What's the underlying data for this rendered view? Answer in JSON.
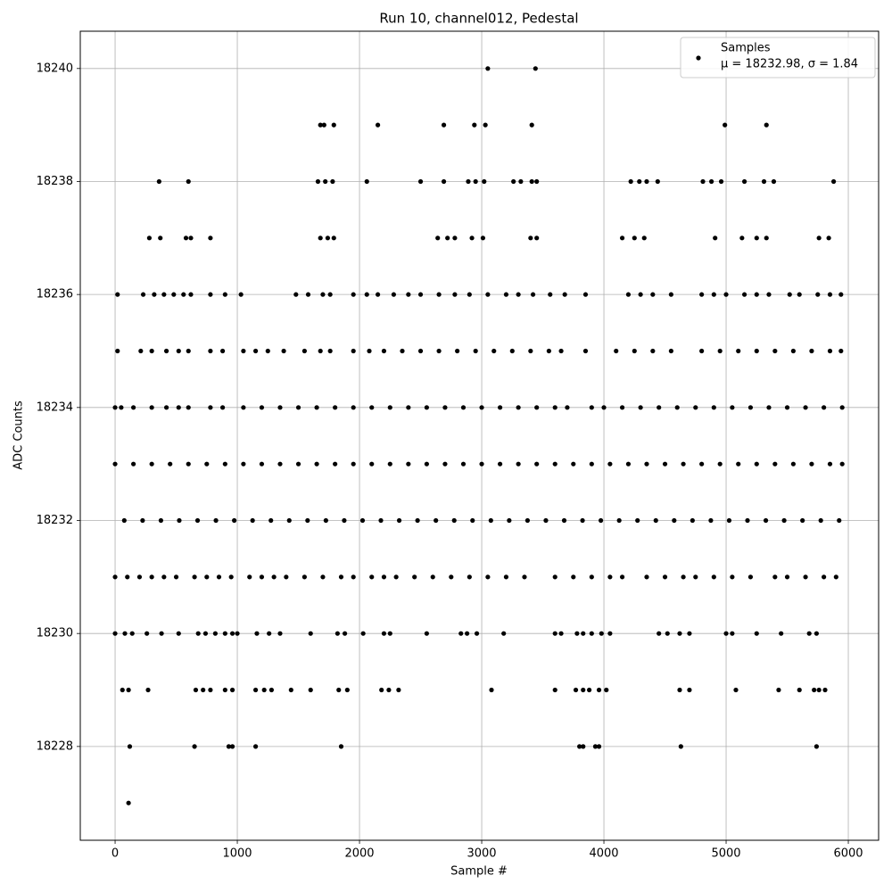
{
  "chart_data": {
    "type": "scatter",
    "title": "Run 10, channel012, Pedestal",
    "x_label": "Sample #",
    "y_label": "ADC Counts",
    "grid": true,
    "legend_position": "upper right",
    "series": [
      {
        "name": "Samples",
        "color": "#000000",
        "x": [
          3050,
          3440,
          1680,
          1710,
          1790,
          2150,
          2690,
          2940,
          3030,
          3410,
          4990,
          5330,
          360,
          600,
          1660,
          1720,
          1780,
          2060,
          2500,
          2690,
          2890,
          2950,
          3020,
          3260,
          3320,
          3410,
          3450,
          4220,
          4290,
          4350,
          4440,
          4810,
          4880,
          4960,
          5150,
          5310,
          5390,
          5880,
          280,
          370,
          580,
          620,
          780,
          1680,
          1740,
          1790,
          2640,
          2720,
          2780,
          2920,
          3010,
          3400,
          3450,
          4150,
          4250,
          4330,
          4910,
          5130,
          5250,
          5330,
          5760,
          5840,
          20,
          230,
          320,
          400,
          480,
          560,
          620,
          780,
          900,
          1030,
          1480,
          1580,
          1700,
          1760,
          1950,
          2060,
          2150,
          2280,
          2400,
          2500,
          2650,
          2780,
          2900,
          3050,
          3200,
          3300,
          3420,
          3560,
          3680,
          3850,
          4200,
          4300,
          4400,
          4550,
          4800,
          4900,
          5000,
          5150,
          5250,
          5350,
          5520,
          5600,
          5750,
          5850,
          5940,
          20,
          210,
          300,
          420,
          520,
          600,
          780,
          880,
          1050,
          1150,
          1250,
          1380,
          1550,
          1680,
          1760,
          1950,
          2080,
          2200,
          2350,
          2500,
          2650,
          2800,
          2950,
          3100,
          3250,
          3400,
          3550,
          3650,
          3850,
          4100,
          4250,
          4400,
          4550,
          4800,
          4950,
          5100,
          5250,
          5400,
          5550,
          5700,
          5850,
          5940,
          0,
          50,
          150,
          300,
          420,
          520,
          600,
          780,
          880,
          1050,
          1200,
          1350,
          1500,
          1650,
          1800,
          1950,
          2100,
          2250,
          2400,
          2550,
          2700,
          2850,
          3000,
          3150,
          3300,
          3450,
          3600,
          3700,
          3900,
          4000,
          4150,
          4300,
          4450,
          4600,
          4750,
          4900,
          5050,
          5200,
          5350,
          5500,
          5650,
          5800,
          5950,
          0,
          150,
          300,
          450,
          600,
          750,
          900,
          1050,
          1200,
          1350,
          1500,
          1650,
          1800,
          1950,
          2100,
          2250,
          2400,
          2550,
          2700,
          2850,
          3000,
          3150,
          3300,
          3450,
          3600,
          3750,
          3900,
          4050,
          4200,
          4350,
          4500,
          4650,
          4800,
          4950,
          5100,
          5250,
          5400,
          5550,
          5700,
          5850,
          5950,
          75,
          225,
          375,
          525,
          675,
          825,
          975,
          1125,
          1275,
          1425,
          1575,
          1725,
          1875,
          2025,
          2175,
          2325,
          2475,
          2625,
          2775,
          2925,
          3075,
          3225,
          3375,
          3525,
          3675,
          3825,
          3975,
          4125,
          4275,
          4425,
          4575,
          4725,
          4875,
          5025,
          5175,
          5325,
          5475,
          5625,
          5775,
          5925,
          0,
          100,
          200,
          300,
          400,
          500,
          650,
          750,
          850,
          950,
          1100,
          1200,
          1300,
          1400,
          1550,
          1700,
          1850,
          1950,
          2100,
          2200,
          2300,
          2450,
          2600,
          2750,
          2900,
          3050,
          3200,
          3350,
          3600,
          3750,
          3900,
          4050,
          4150,
          4350,
          4500,
          4650,
          4750,
          4900,
          5050,
          5200,
          5400,
          5500,
          5650,
          5800,
          5900,
          0,
          80,
          140,
          260,
          380,
          520,
          680,
          740,
          820,
          900,
          960,
          1000,
          1160,
          1260,
          1350,
          1600,
          1820,
          1880,
          2030,
          2200,
          2250,
          2550,
          2830,
          2880,
          2960,
          3180,
          3600,
          3650,
          3780,
          3830,
          3900,
          3980,
          4050,
          4450,
          4520,
          4620,
          4700,
          5000,
          5050,
          5250,
          5450,
          5680,
          5740,
          60,
          110,
          270,
          660,
          720,
          780,
          900,
          960,
          1150,
          1220,
          1280,
          1440,
          1600,
          1830,
          1900,
          2180,
          2240,
          2320,
          3080,
          3600,
          3770,
          3830,
          3880,
          3960,
          4020,
          4620,
          4700,
          5080,
          5430,
          5600,
          5720,
          5760,
          5810,
          120,
          650,
          930,
          960,
          1150,
          1850,
          3800,
          3830,
          3930,
          3960,
          4630,
          5740,
          110
        ],
        "values": [
          18240,
          18240,
          18239,
          18239,
          18239,
          18239,
          18239,
          18239,
          18239,
          18239,
          18239,
          18239,
          18238,
          18238,
          18238,
          18238,
          18238,
          18238,
          18238,
          18238,
          18238,
          18238,
          18238,
          18238,
          18238,
          18238,
          18238,
          18238,
          18238,
          18238,
          18238,
          18238,
          18238,
          18238,
          18238,
          18238,
          18238,
          18238,
          18237,
          18237,
          18237,
          18237,
          18237,
          18237,
          18237,
          18237,
          18237,
          18237,
          18237,
          18237,
          18237,
          18237,
          18237,
          18237,
          18237,
          18237,
          18237,
          18237,
          18237,
          18237,
          18237,
          18237,
          18236,
          18236,
          18236,
          18236,
          18236,
          18236,
          18236,
          18236,
          18236,
          18236,
          18236,
          18236,
          18236,
          18236,
          18236,
          18236,
          18236,
          18236,
          18236,
          18236,
          18236,
          18236,
          18236,
          18236,
          18236,
          18236,
          18236,
          18236,
          18236,
          18236,
          18236,
          18236,
          18236,
          18236,
          18236,
          18236,
          18236,
          18236,
          18236,
          18236,
          18236,
          18236,
          18236,
          18236,
          18236,
          18235,
          18235,
          18235,
          18235,
          18235,
          18235,
          18235,
          18235,
          18235,
          18235,
          18235,
          18235,
          18235,
          18235,
          18235,
          18235,
          18235,
          18235,
          18235,
          18235,
          18235,
          18235,
          18235,
          18235,
          18235,
          18235,
          18235,
          18235,
          18235,
          18235,
          18235,
          18235,
          18235,
          18235,
          18235,
          18235,
          18235,
          18235,
          18235,
          18235,
          18235,
          18235,
          18234,
          18234,
          18234,
          18234,
          18234,
          18234,
          18234,
          18234,
          18234,
          18234,
          18234,
          18234,
          18234,
          18234,
          18234,
          18234,
          18234,
          18234,
          18234,
          18234,
          18234,
          18234,
          18234,
          18234,
          18234,
          18234,
          18234,
          18234,
          18234,
          18234,
          18234,
          18234,
          18234,
          18234,
          18234,
          18234,
          18234,
          18234,
          18234,
          18234,
          18234,
          18234,
          18234,
          18233,
          18233,
          18233,
          18233,
          18233,
          18233,
          18233,
          18233,
          18233,
          18233,
          18233,
          18233,
          18233,
          18233,
          18233,
          18233,
          18233,
          18233,
          18233,
          18233,
          18233,
          18233,
          18233,
          18233,
          18233,
          18233,
          18233,
          18233,
          18233,
          18233,
          18233,
          18233,
          18233,
          18233,
          18233,
          18233,
          18233,
          18233,
          18233,
          18233,
          18233,
          18232,
          18232,
          18232,
          18232,
          18232,
          18232,
          18232,
          18232,
          18232,
          18232,
          18232,
          18232,
          18232,
          18232,
          18232,
          18232,
          18232,
          18232,
          18232,
          18232,
          18232,
          18232,
          18232,
          18232,
          18232,
          18232,
          18232,
          18232,
          18232,
          18232,
          18232,
          18232,
          18232,
          18232,
          18232,
          18232,
          18232,
          18232,
          18232,
          18232,
          18231,
          18231,
          18231,
          18231,
          18231,
          18231,
          18231,
          18231,
          18231,
          18231,
          18231,
          18231,
          18231,
          18231,
          18231,
          18231,
          18231,
          18231,
          18231,
          18231,
          18231,
          18231,
          18231,
          18231,
          18231,
          18231,
          18231,
          18231,
          18231,
          18231,
          18231,
          18231,
          18231,
          18231,
          18231,
          18231,
          18231,
          18231,
          18231,
          18231,
          18231,
          18231,
          18231,
          18231,
          18231,
          18230,
          18230,
          18230,
          18230,
          18230,
          18230,
          18230,
          18230,
          18230,
          18230,
          18230,
          18230,
          18230,
          18230,
          18230,
          18230,
          18230,
          18230,
          18230,
          18230,
          18230,
          18230,
          18230,
          18230,
          18230,
          18230,
          18230,
          18230,
          18230,
          18230,
          18230,
          18230,
          18230,
          18230,
          18230,
          18230,
          18230,
          18230,
          18230,
          18230,
          18230,
          18230,
          18230,
          18229,
          18229,
          18229,
          18229,
          18229,
          18229,
          18229,
          18229,
          18229,
          18229,
          18229,
          18229,
          18229,
          18229,
          18229,
          18229,
          18229,
          18229,
          18229,
          18229,
          18229,
          18229,
          18229,
          18229,
          18229,
          18229,
          18229,
          18229,
          18229,
          18229,
          18229,
          18229,
          18229,
          18228,
          18228,
          18228,
          18228,
          18228,
          18228,
          18228,
          18228,
          18228,
          18228,
          18228,
          18228,
          18227
        ]
      }
    ],
    "legend_note": "μ = 18232.98, σ = 1.84",
    "xlim": [
      -285,
      6248
    ],
    "ylim": [
      18226.34,
      18240.66
    ],
    "xticks": [
      0,
      1000,
      2000,
      3000,
      4000,
      5000,
      6000
    ],
    "yticks": [
      18228,
      18230,
      18232,
      18234,
      18236,
      18238,
      18240
    ]
  }
}
